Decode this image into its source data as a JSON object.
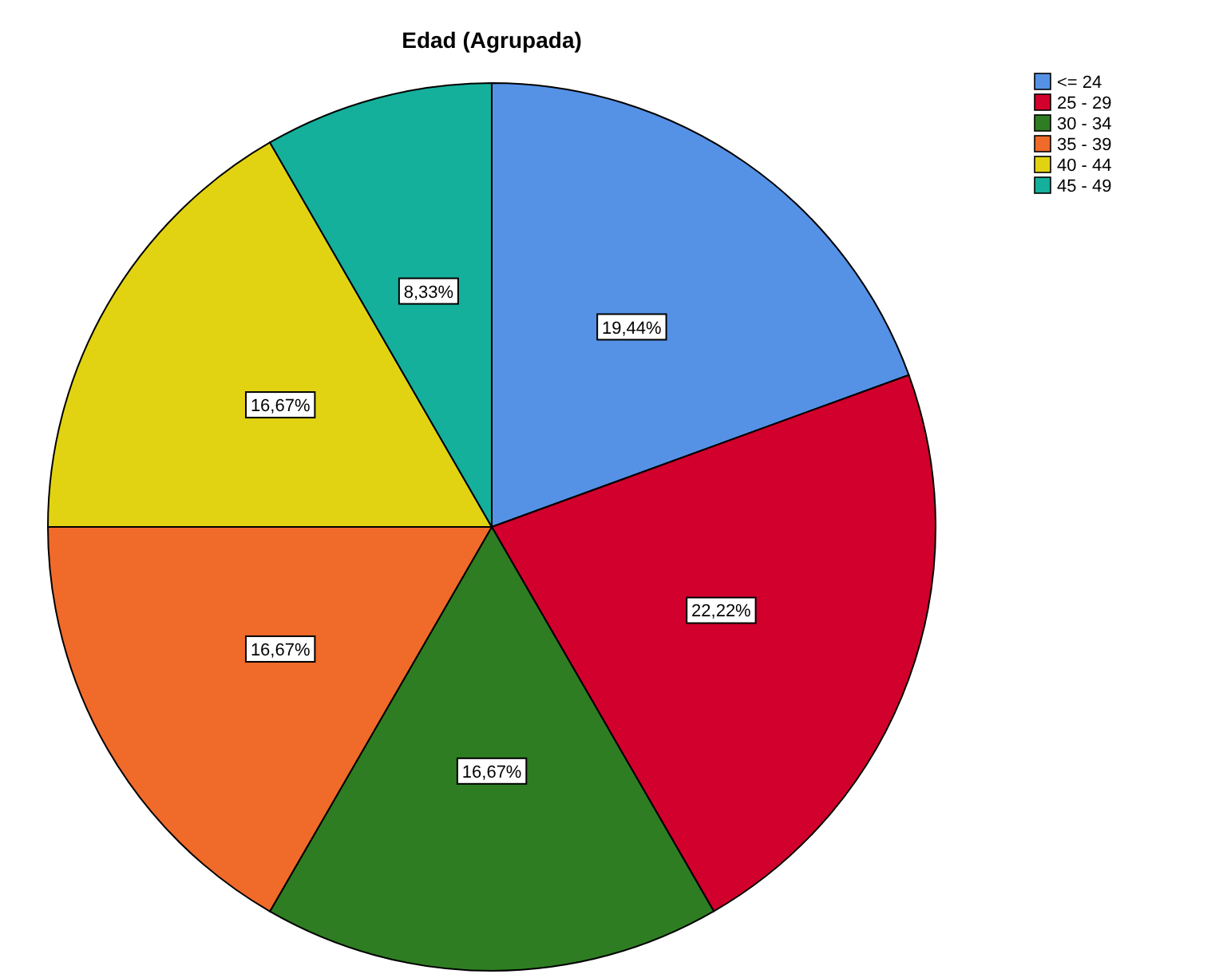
{
  "chart_data": {
    "type": "pie",
    "title": "Edad (Agrupada)",
    "categories": [
      "<= 24",
      "25 - 29",
      "30 - 34",
      "35 - 39",
      "40 - 44",
      "45 - 49"
    ],
    "values": [
      19.44,
      22.22,
      16.67,
      16.67,
      16.67,
      8.33
    ],
    "colors": [
      "#5592e6",
      "#d2002c",
      "#2e7d22",
      "#f06a2a",
      "#e2d312",
      "#14b09b"
    ],
    "value_labels": [
      "19,44%",
      "22,22%",
      "16,67%",
      "16,67%",
      "16,67%",
      "8,33%"
    ],
    "legend": "top right"
  }
}
